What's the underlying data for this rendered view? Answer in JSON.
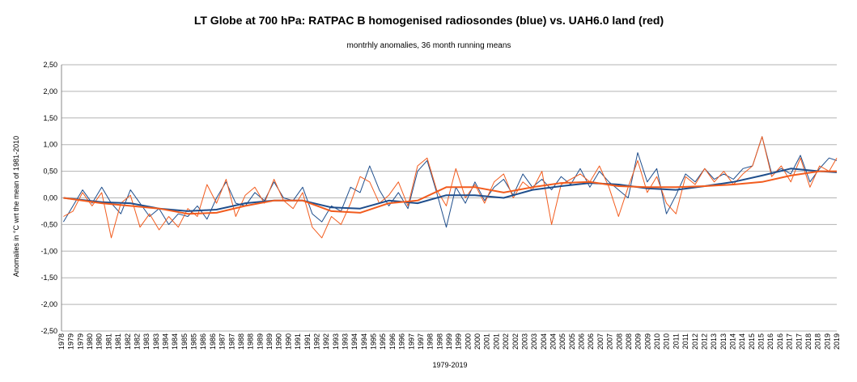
{
  "chart_data": {
    "type": "line",
    "title": "LT Globe at 700 hPa: RATPAC B homogenised radiosondes (blue) vs. UAH6.0 land (red)",
    "subtitle": "montrhly anomalies, 36 month running means",
    "xlabel": "1979-2019",
    "ylabel": "Anomalies in °C wrt the mean of 1981-2010",
    "ylim": [
      -2.5,
      2.5
    ],
    "y_ticks": [
      "2,50",
      "2,00",
      "1,50",
      "1,00",
      "0,50",
      "0,00",
      "-0,50",
      "-1,00",
      "-1,50",
      "-2,00",
      "-2,50"
    ],
    "y_tick_values": [
      2.5,
      2.0,
      1.5,
      1.0,
      0.5,
      0.0,
      -0.5,
      -1.0,
      -1.5,
      -2.0,
      -2.5
    ],
    "x_ticks": [
      "1978",
      "1979",
      "1979",
      "1980",
      "1980",
      "1981",
      "1981",
      "1982",
      "1982",
      "1983",
      "1983",
      "1984",
      "1984",
      "1985",
      "1985",
      "1986",
      "1986",
      "1987",
      "1987",
      "1988",
      "1988",
      "1989",
      "1989",
      "1990",
      "1990",
      "1991",
      "1991",
      "1992",
      "1992",
      "1993",
      "1993",
      "1994",
      "1994",
      "1995",
      "1995",
      "1996",
      "1996",
      "1997",
      "1997",
      "1998",
      "1998",
      "1999",
      "1999",
      "2000",
      "2000",
      "2001",
      "2001",
      "2002",
      "2002",
      "2003",
      "2003",
      "2004",
      "2004",
      "2005",
      "2005",
      "2006",
      "2006",
      "2007",
      "2007",
      "2008",
      "2008",
      "2009",
      "2009",
      "2010",
      "2010",
      "2011",
      "2011",
      "2012",
      "2012",
      "2013",
      "2013",
      "2014",
      "2014",
      "2015",
      "2015",
      "2016",
      "2016",
      "2017",
      "2017",
      "2018",
      "2018",
      "2019",
      "2019"
    ],
    "x_range": [
      1978.9,
      2019.4
    ],
    "grid": "horizontal",
    "colors": {
      "blue": "#1f4e8c",
      "red": "#f25c1e",
      "grid": "#b3b3b3",
      "axis": "#888888"
    },
    "series": [
      {
        "name": "RATPAC B monthly (blue)",
        "style": "thin",
        "color": "#1f4e8c",
        "x": [
          1979.0,
          1979.5,
          1980.0,
          1980.5,
          1981.0,
          1981.5,
          1982.0,
          1982.5,
          1983.0,
          1983.5,
          1984.0,
          1984.5,
          1985.0,
          1985.5,
          1986.0,
          1986.5,
          1987.0,
          1987.5,
          1988.0,
          1988.5,
          1989.0,
          1989.5,
          1990.0,
          1990.5,
          1991.0,
          1991.5,
          1992.0,
          1992.5,
          1993.0,
          1993.5,
          1994.0,
          1994.5,
          1995.0,
          1995.5,
          1996.0,
          1996.5,
          1997.0,
          1997.5,
          1998.0,
          1998.5,
          1999.0,
          1999.5,
          2000.0,
          2000.5,
          2001.0,
          2001.5,
          2002.0,
          2002.5,
          2003.0,
          2003.5,
          2004.0,
          2004.5,
          2005.0,
          2005.5,
          2006.0,
          2006.5,
          2007.0,
          2007.5,
          2008.0,
          2008.5,
          2009.0,
          2009.5,
          2010.0,
          2010.5,
          2011.0,
          2011.5,
          2012.0,
          2012.5,
          2013.0,
          2013.5,
          2014.0,
          2014.5,
          2015.0,
          2015.5,
          2016.0,
          2016.5,
          2017.0,
          2017.5,
          2018.0,
          2018.5,
          2019.0,
          2019.4
        ],
        "values": [
          -0.45,
          -0.15,
          0.15,
          -0.1,
          0.2,
          -0.1,
          -0.3,
          0.15,
          -0.1,
          -0.35,
          -0.2,
          -0.5,
          -0.3,
          -0.35,
          -0.15,
          -0.4,
          0.0,
          0.3,
          -0.1,
          -0.15,
          0.1,
          -0.05,
          0.3,
          0.0,
          -0.05,
          0.2,
          -0.3,
          -0.45,
          -0.15,
          -0.25,
          0.2,
          0.1,
          0.6,
          0.15,
          -0.15,
          0.1,
          -0.2,
          0.5,
          0.7,
          0.1,
          -0.55,
          0.2,
          -0.1,
          0.3,
          -0.05,
          0.2,
          0.35,
          0.05,
          0.45,
          0.2,
          0.35,
          0.15,
          0.4,
          0.25,
          0.55,
          0.2,
          0.5,
          0.3,
          0.15,
          0.0,
          0.85,
          0.3,
          0.55,
          -0.3,
          0.05,
          0.45,
          0.3,
          0.55,
          0.35,
          0.45,
          0.35,
          0.55,
          0.6,
          1.15,
          0.45,
          0.55,
          0.45,
          0.8,
          0.3,
          0.55,
          0.75,
          0.7
        ]
      },
      {
        "name": "UAH6.0 land monthly (red)",
        "style": "thin",
        "color": "#f25c1e",
        "x": [
          1979.0,
          1979.5,
          1980.0,
          1980.5,
          1981.0,
          1981.5,
          1982.0,
          1982.5,
          1983.0,
          1983.5,
          1984.0,
          1984.5,
          1985.0,
          1985.5,
          1986.0,
          1986.5,
          1987.0,
          1987.5,
          1988.0,
          1988.5,
          1989.0,
          1989.5,
          1990.0,
          1990.5,
          1991.0,
          1991.5,
          1992.0,
          1992.5,
          1993.0,
          1993.5,
          1994.0,
          1994.5,
          1995.0,
          1995.5,
          1996.0,
          1996.5,
          1997.0,
          1997.5,
          1998.0,
          1998.5,
          1999.0,
          1999.5,
          2000.0,
          2000.5,
          2001.0,
          2001.5,
          2002.0,
          2002.5,
          2003.0,
          2003.5,
          2004.0,
          2004.5,
          2005.0,
          2005.5,
          2006.0,
          2006.5,
          2007.0,
          2007.5,
          2008.0,
          2008.5,
          2009.0,
          2009.5,
          2010.0,
          2010.5,
          2011.0,
          2011.5,
          2012.0,
          2012.5,
          2013.0,
          2013.5,
          2014.0,
          2014.5,
          2015.0,
          2015.5,
          2016.0,
          2016.5,
          2017.0,
          2017.5,
          2018.0,
          2018.5,
          2019.0,
          2019.4
        ],
        "values": [
          -0.35,
          -0.25,
          0.1,
          -0.15,
          0.1,
          -0.75,
          -0.1,
          0.05,
          -0.55,
          -0.3,
          -0.6,
          -0.35,
          -0.55,
          -0.2,
          -0.35,
          0.25,
          -0.1,
          0.35,
          -0.35,
          0.05,
          0.2,
          -0.1,
          0.35,
          -0.05,
          -0.2,
          0.1,
          -0.55,
          -0.75,
          -0.35,
          -0.5,
          -0.1,
          0.4,
          0.3,
          -0.1,
          0.05,
          0.3,
          -0.15,
          0.6,
          0.75,
          0.15,
          -0.15,
          0.55,
          0.0,
          0.25,
          -0.1,
          0.3,
          0.45,
          0.0,
          0.3,
          0.15,
          0.5,
          -0.5,
          0.25,
          0.35,
          0.45,
          0.3,
          0.6,
          0.2,
          -0.35,
          0.2,
          0.7,
          0.1,
          0.4,
          -0.1,
          -0.3,
          0.4,
          0.25,
          0.55,
          0.3,
          0.5,
          0.25,
          0.45,
          0.6,
          1.15,
          0.4,
          0.6,
          0.3,
          0.75,
          0.2,
          0.6,
          0.5,
          0.75
        ]
      },
      {
        "name": "RATPAC B 36 month running mean (blue)",
        "style": "thick",
        "color": "#1f4e8c",
        "x": [
          1979.0,
          1981.0,
          1982.5,
          1984.0,
          1985.5,
          1987.0,
          1988.5,
          1990.0,
          1991.5,
          1993.0,
          1994.5,
          1996.0,
          1997.5,
          1999.0,
          2000.5,
          2002.0,
          2003.5,
          2005.0,
          2006.5,
          2008.0,
          2009.5,
          2011.0,
          2012.5,
          2014.0,
          2015.5,
          2017.0,
          2018.5,
          2019.4
        ],
        "values": [
          0.0,
          -0.08,
          -0.1,
          -0.2,
          -0.25,
          -0.22,
          -0.1,
          -0.05,
          -0.05,
          -0.18,
          -0.2,
          -0.05,
          -0.1,
          0.05,
          0.05,
          0.0,
          0.15,
          0.22,
          0.28,
          0.25,
          0.18,
          0.15,
          0.22,
          0.3,
          0.42,
          0.55,
          0.5,
          0.48
        ]
      },
      {
        "name": "UAH6.0 land 36 month running mean (red)",
        "style": "thick",
        "color": "#f25c1e",
        "x": [
          1979.0,
          1981.0,
          1982.5,
          1984.0,
          1985.5,
          1987.0,
          1988.5,
          1990.0,
          1991.5,
          1993.0,
          1994.5,
          1996.0,
          1997.5,
          1999.0,
          2000.5,
          2002.0,
          2003.5,
          2005.0,
          2006.5,
          2008.0,
          2009.5,
          2011.0,
          2012.5,
          2014.0,
          2015.5,
          2017.0,
          2018.5,
          2019.4
        ],
        "values": [
          0.0,
          -0.1,
          -0.15,
          -0.2,
          -0.3,
          -0.28,
          -0.15,
          -0.05,
          -0.05,
          -0.25,
          -0.28,
          -0.1,
          -0.05,
          0.2,
          0.2,
          0.1,
          0.2,
          0.28,
          0.3,
          0.22,
          0.2,
          0.2,
          0.22,
          0.25,
          0.3,
          0.42,
          0.5,
          0.5
        ]
      }
    ]
  }
}
